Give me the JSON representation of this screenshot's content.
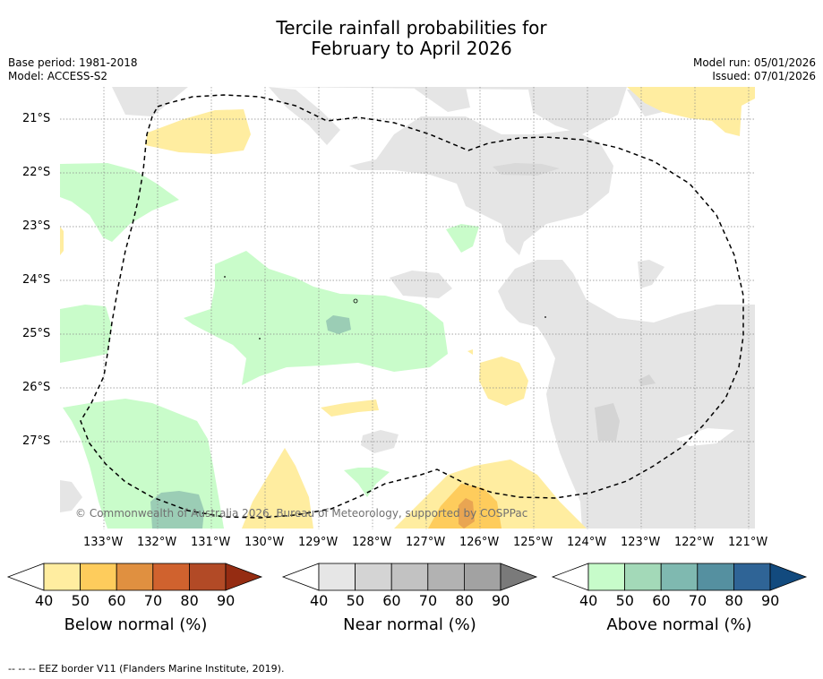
{
  "title": {
    "line1": "Tercile rainfall probabilities for",
    "line2": "February to April 2026"
  },
  "meta": {
    "base_period": "Base period: 1981-2018",
    "model": "Model: ACCESS-S2",
    "model_run": "Model run: 05/01/2026",
    "issued": "Issued: 07/01/2026"
  },
  "map": {
    "latitudes": [
      "21°S",
      "22°S",
      "23°S",
      "24°S",
      "25°S",
      "26°S",
      "27°S"
    ],
    "longitudes": [
      "133°W",
      "132°W",
      "131°W",
      "130°W",
      "129°W",
      "128°W",
      "127°W",
      "126°W",
      "125°W",
      "124°W",
      "123°W",
      "122°W",
      "121°W"
    ],
    "copyright": "© Commonwealth of Australia 2026, Bureau of Meteorology, supported by COSPPac",
    "eez_line_style": "dashed"
  },
  "colorbars": [
    {
      "label": "Below normal (%)",
      "ticks": [
        "40",
        "50",
        "60",
        "70",
        "80",
        "90"
      ],
      "colors": [
        "#ffeda0",
        "#fecc5c",
        "#e09040",
        "#d0622e",
        "#b24a26",
        "#952c12"
      ]
    },
    {
      "label": "Near normal (%)",
      "ticks": [
        "40",
        "50",
        "60",
        "70",
        "80",
        "90"
      ],
      "colors": [
        "#e6e6e6",
        "#d4d4d4",
        "#c2c2c2",
        "#b2b2b2",
        "#a2a2a2",
        "#7a7a7a"
      ]
    },
    {
      "label": "Above normal (%)",
      "ticks": [
        "40",
        "50",
        "60",
        "70",
        "80",
        "90"
      ],
      "colors": [
        "#c7fcca",
        "#a3d9b8",
        "#7fb9b0",
        "#5590a0",
        "#2f6496",
        "#124a7e"
      ]
    }
  ],
  "footer": "--  --  -- EEZ border V11 (Flanders Marine Institute, 2019).",
  "colors": {
    "below": "#ffeda0",
    "below_mid": "#fecc5c",
    "below_high": "#e9a552",
    "near": "#e5e5e5",
    "near_mid": "#d4d4d4",
    "above": "#c9fcca",
    "above_mid": "#9bcdb5"
  }
}
